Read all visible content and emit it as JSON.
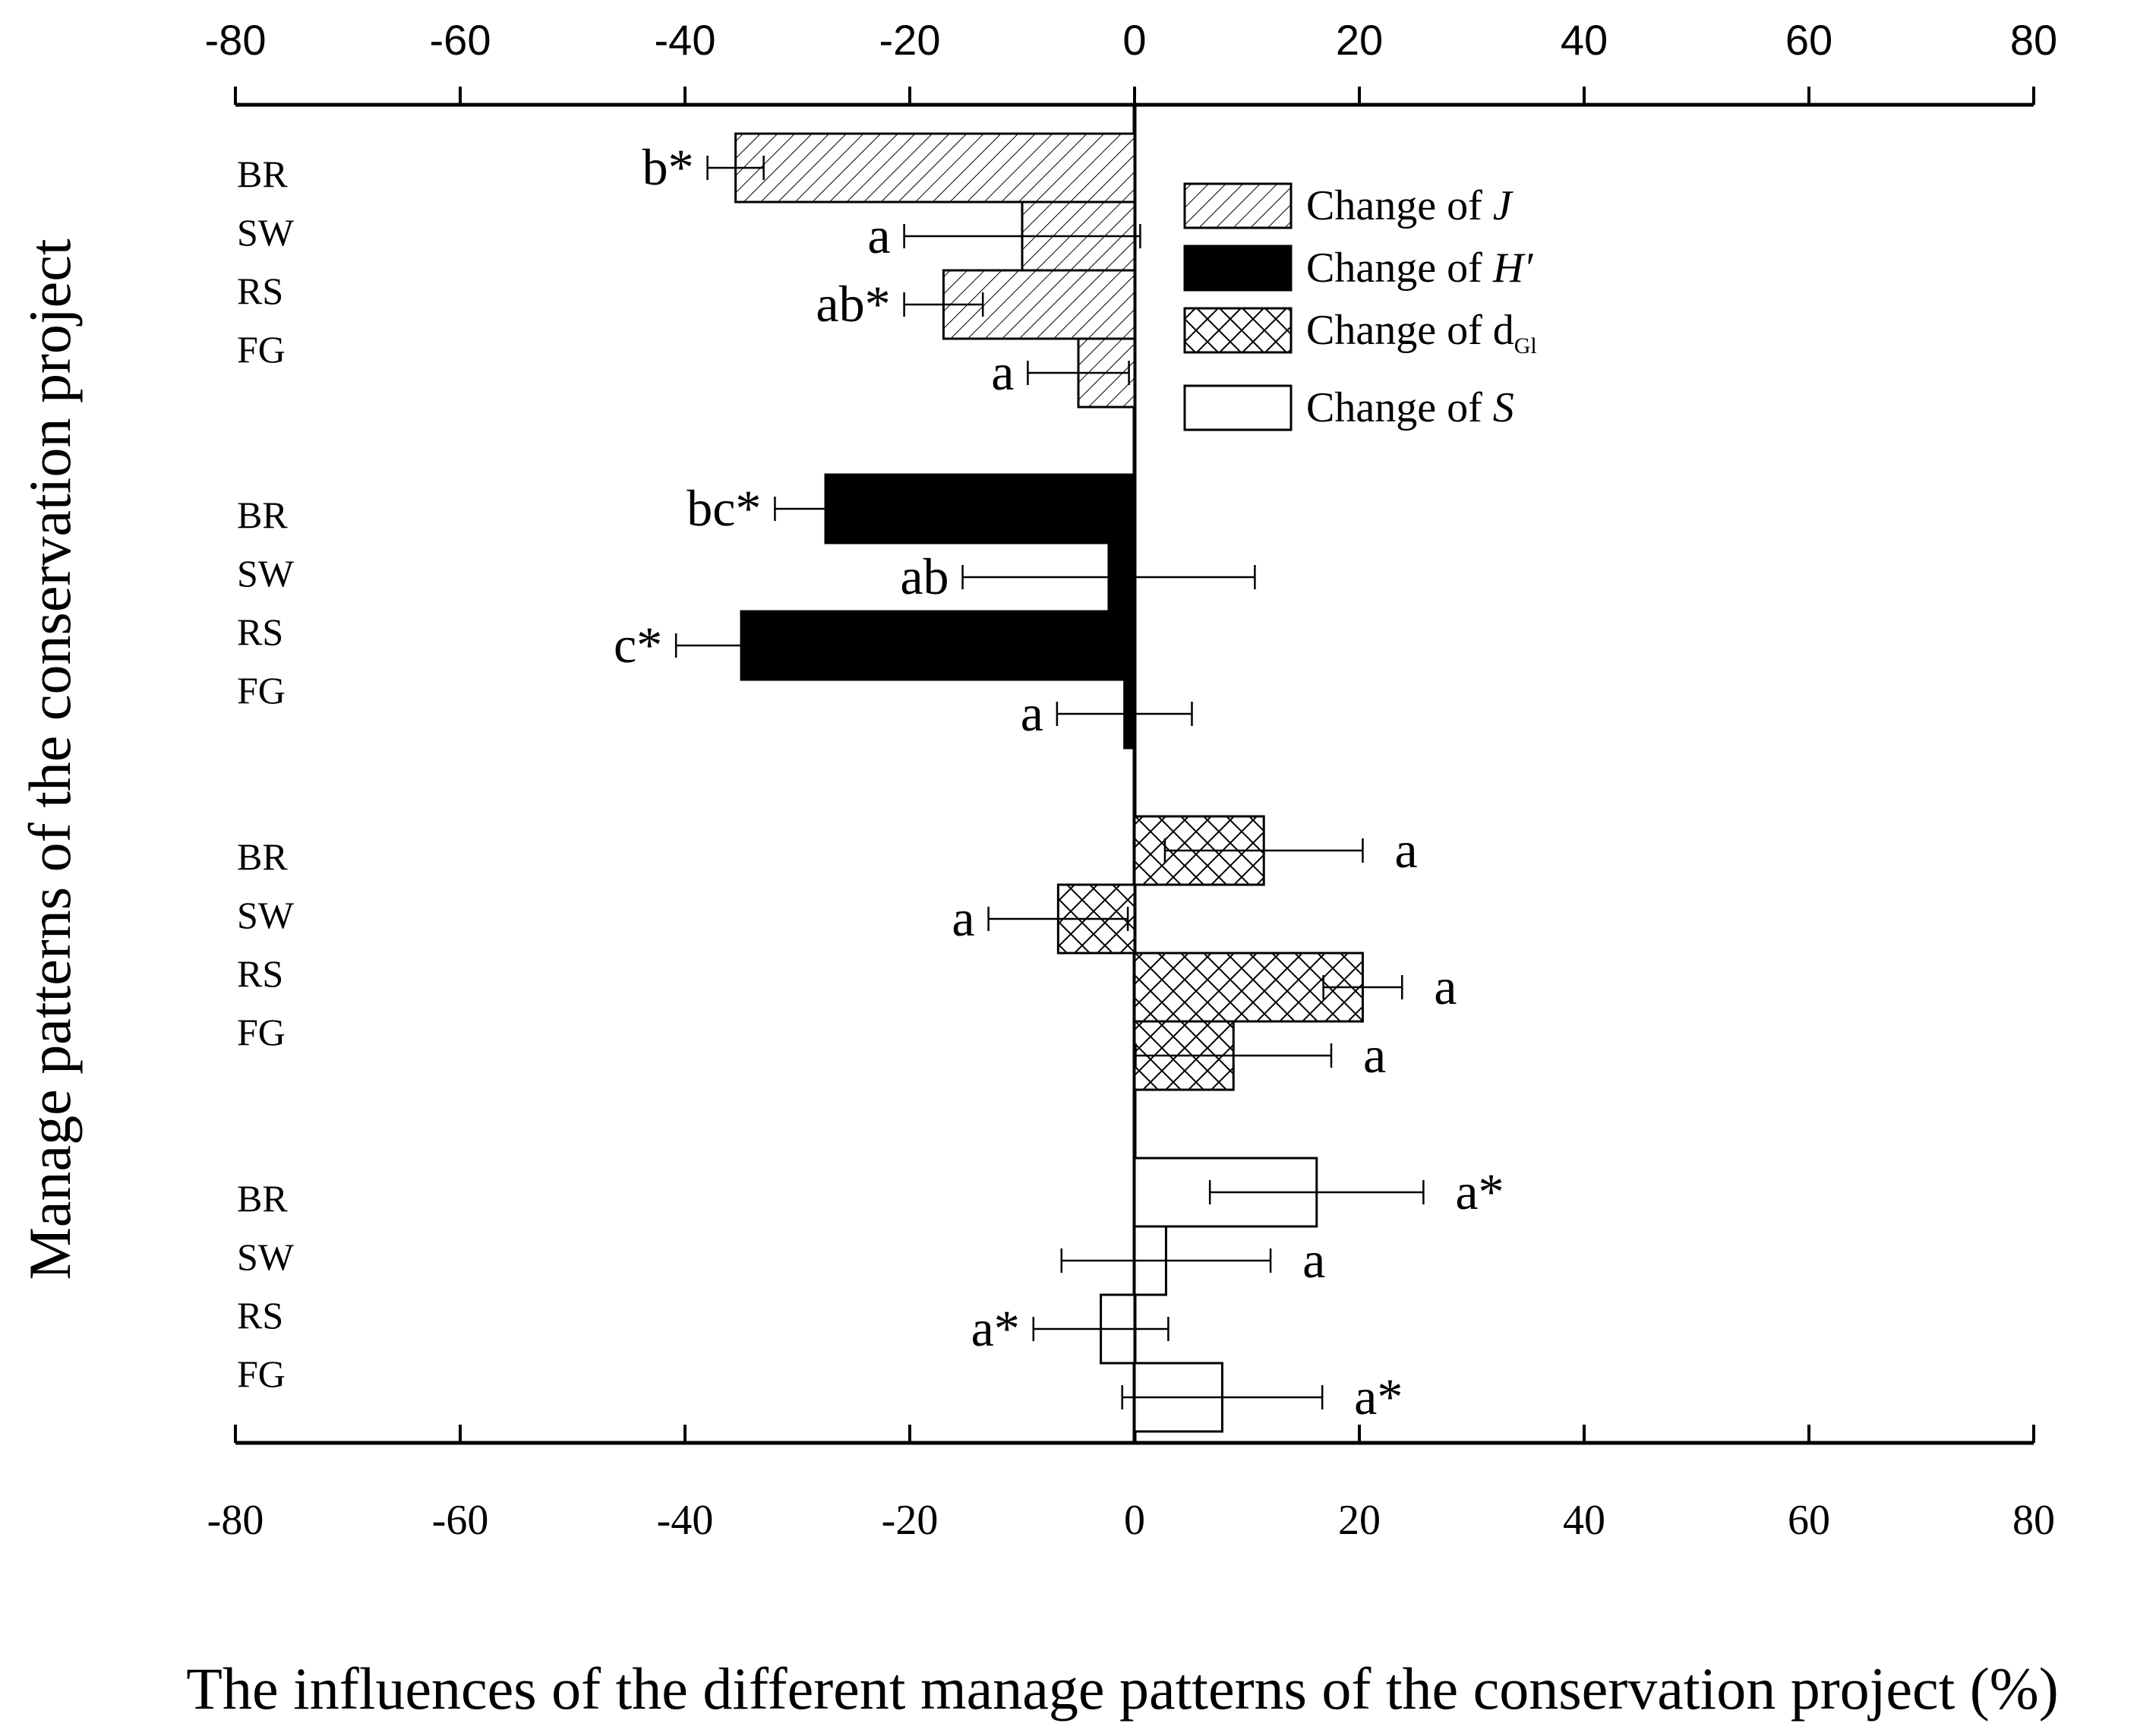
{
  "chart_data": {
    "type": "bar",
    "orientation": "horizontal",
    "xlabel": "The influences of the different manage patterns of the conservation project (%)",
    "ylabel": "Manage patterns of  the conservation project",
    "xlim": [
      -80,
      80
    ],
    "xticks": [
      -80,
      -60,
      -40,
      -20,
      0,
      20,
      40,
      60,
      80
    ],
    "grid": false,
    "legend_position": "top-right",
    "categories": [
      "BR",
      "SW",
      "RS",
      "FG"
    ],
    "series": [
      {
        "name": "Change of J",
        "legend_main": "Change of ",
        "legend_var": "J",
        "legend_sub": "",
        "fill": "hatch",
        "values": [
          -35.5,
          -10,
          -17,
          -5
        ],
        "errors": [
          2.5,
          10.5,
          3.5,
          4.5
        ],
        "significance": [
          "b*",
          "a",
          "ab*",
          "a"
        ]
      },
      {
        "name": "Change of H′",
        "legend_main": "Change of ",
        "legend_var": "H′",
        "legend_sub": "",
        "fill": "black",
        "values": [
          -27.5,
          -2.3,
          -35,
          -0.9
        ],
        "errors": [
          4.5,
          13,
          5.8,
          6
        ],
        "significance": [
          "bc*",
          "ab",
          "c*",
          "a"
        ]
      },
      {
        "name": "Change of dGl",
        "legend_main": "Change of d",
        "legend_var": "",
        "legend_sub": "Gl",
        "fill": "crosshatch",
        "values": [
          11.5,
          -6.8,
          20.3,
          8.8
        ],
        "errors": [
          8.8,
          6.2,
          3.5,
          8.7
        ],
        "significance": [
          "a",
          "a",
          "a",
          "a"
        ]
      },
      {
        "name": "Change of S",
        "legend_main": "Change of ",
        "legend_var": "S",
        "legend_sub": "",
        "fill": "white",
        "values": [
          16.2,
          2.8,
          -3,
          7.8
        ],
        "errors": [
          9.5,
          9.3,
          6,
          8.9
        ],
        "significance": [
          "a*",
          "a",
          "a*",
          "a*"
        ]
      }
    ]
  },
  "colors": {
    "ink": "#000000",
    "background": "#ffffff",
    "hatch_fill": "#ffffff"
  }
}
